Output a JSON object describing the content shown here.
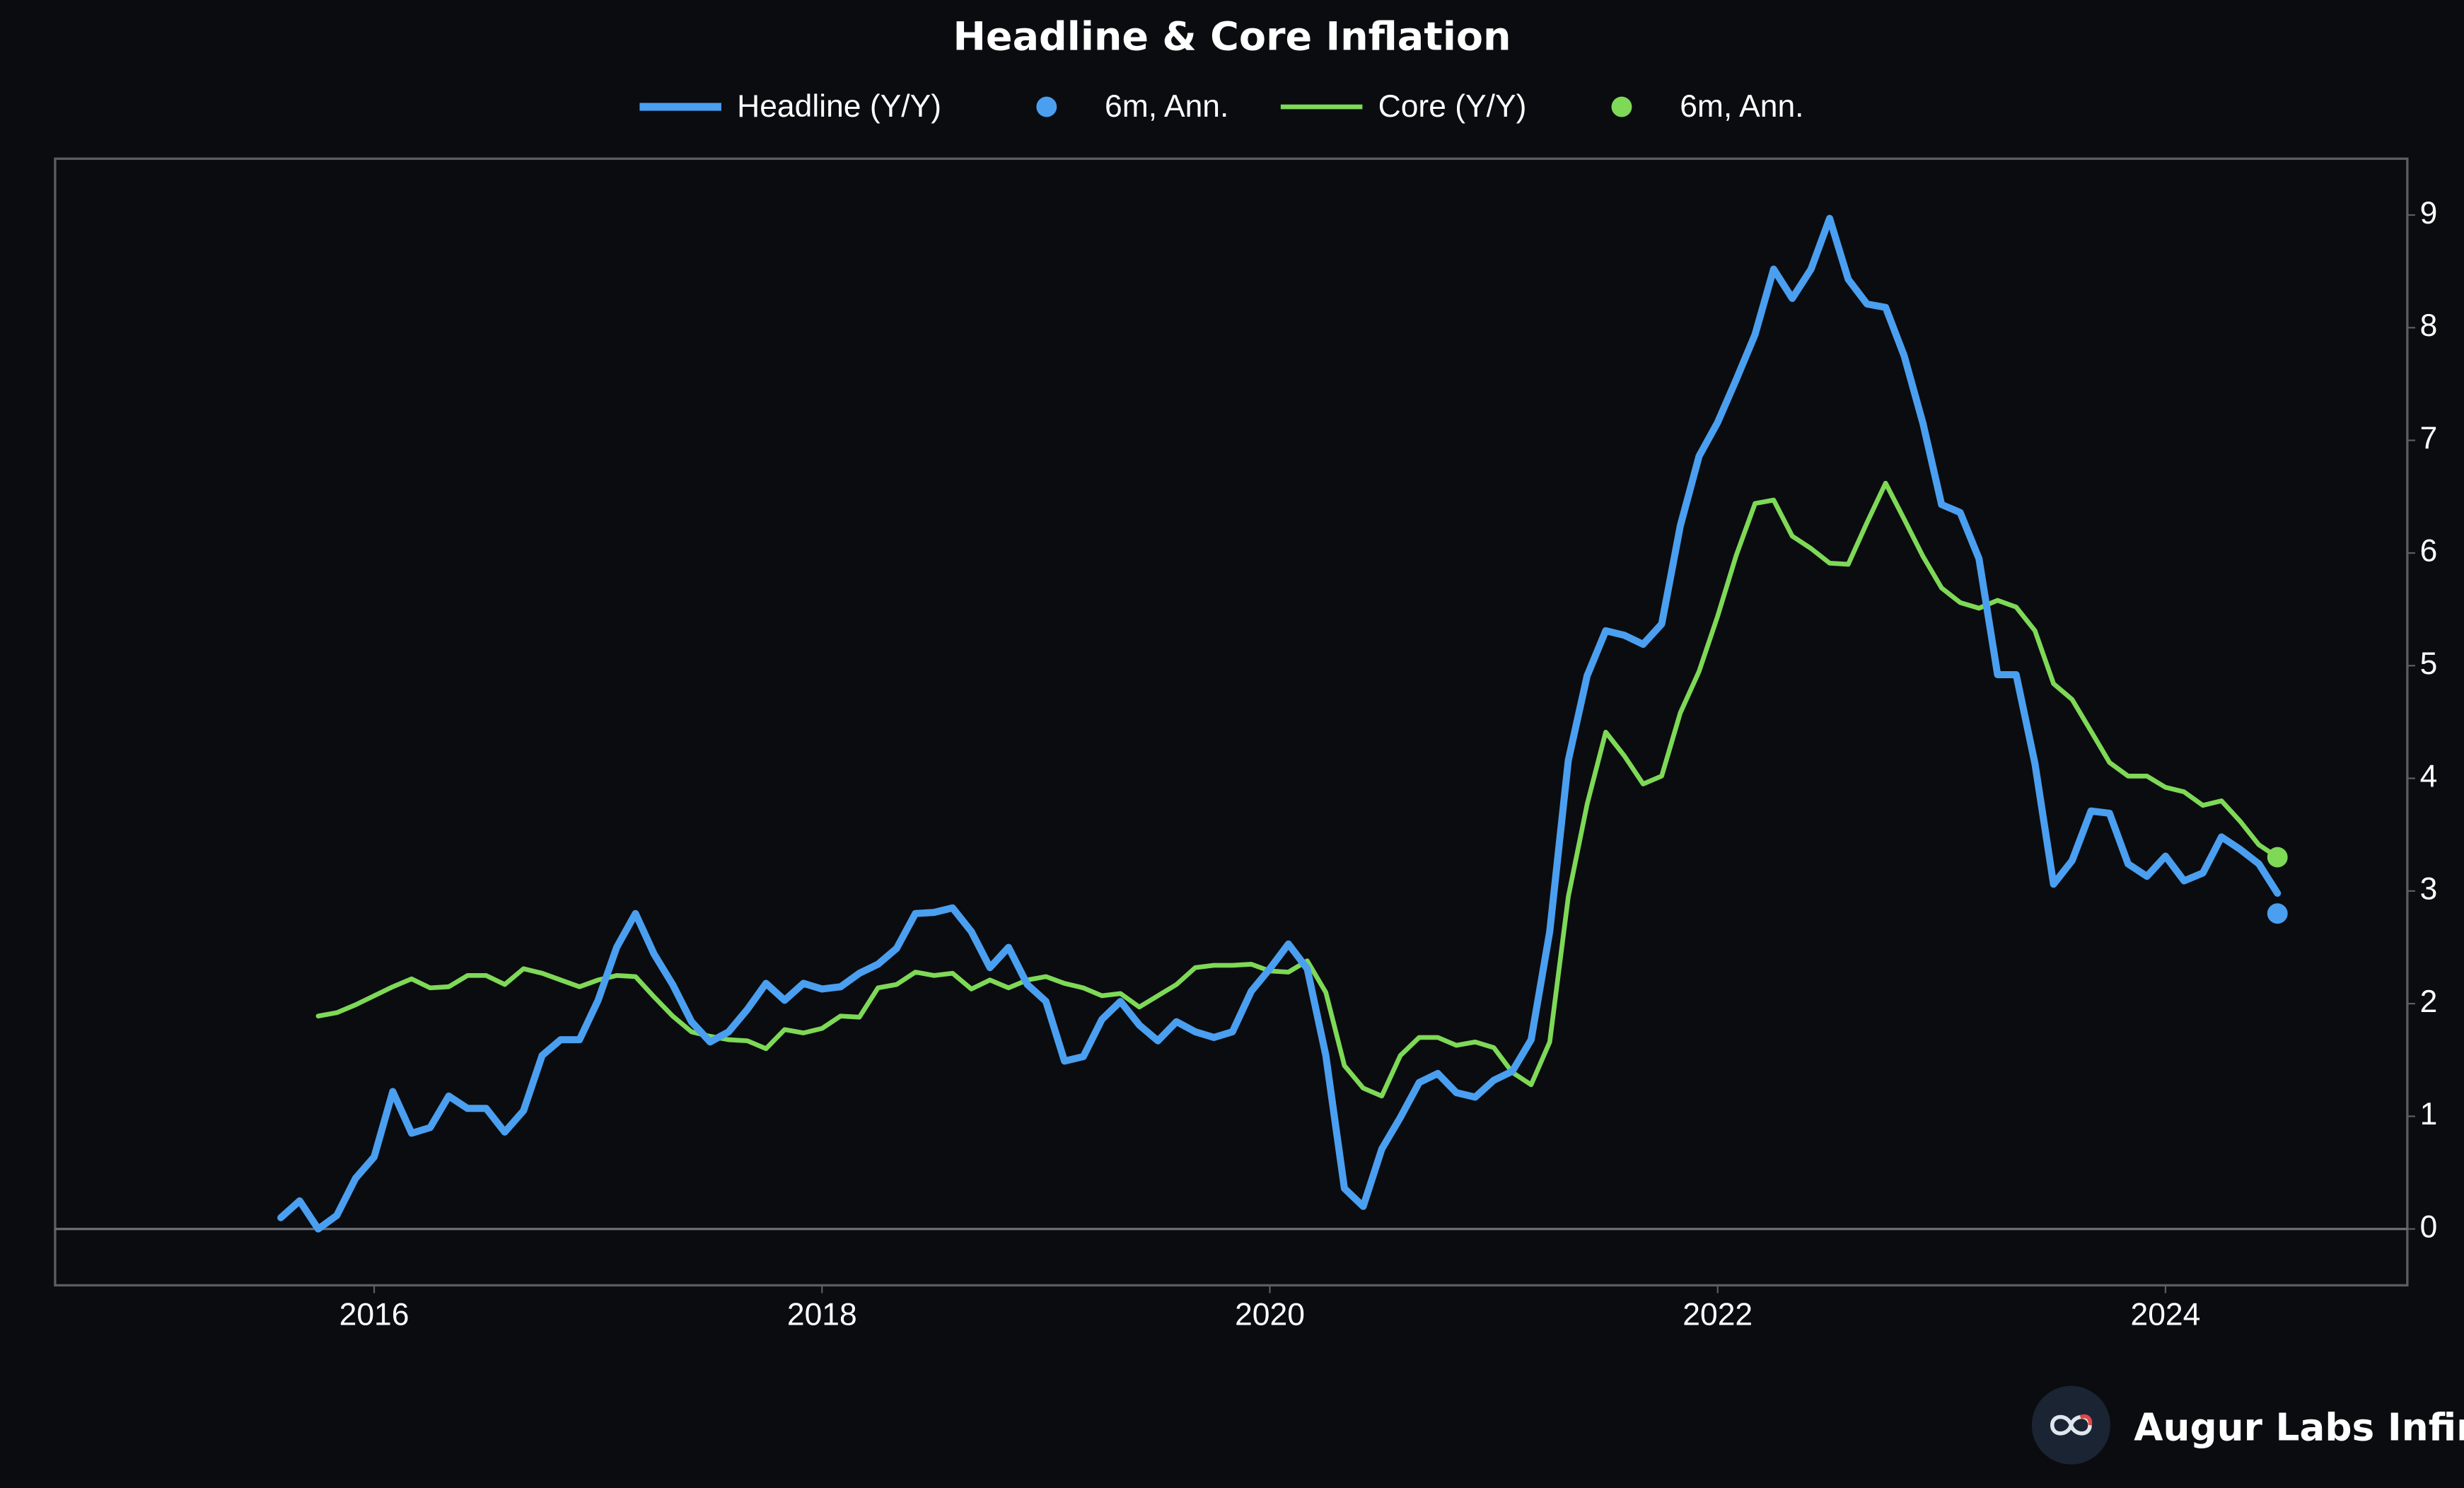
{
  "chart_data": {
    "type": "line",
    "title": "Headline & Core Inflation",
    "x": [
      2015.583,
      2015.667,
      2015.75,
      2015.833,
      2015.917,
      2016.0,
      2016.083,
      2016.167,
      2016.25,
      2016.333,
      2016.417,
      2016.5,
      2016.583,
      2016.667,
      2016.75,
      2016.833,
      2016.917,
      2017.0,
      2017.083,
      2017.167,
      2017.25,
      2017.333,
      2017.417,
      2017.5,
      2017.583,
      2017.667,
      2017.75,
      2017.833,
      2017.917,
      2018.0,
      2018.083,
      2018.167,
      2018.25,
      2018.333,
      2018.417,
      2018.5,
      2018.583,
      2018.667,
      2018.75,
      2018.833,
      2018.917,
      2019.0,
      2019.083,
      2019.167,
      2019.25,
      2019.333,
      2019.417,
      2019.5,
      2019.583,
      2019.667,
      2019.75,
      2019.833,
      2019.917,
      2020.0,
      2020.083,
      2020.167,
      2020.25,
      2020.333,
      2020.417,
      2020.5,
      2020.583,
      2020.667,
      2020.75,
      2020.833,
      2020.917,
      2021.0,
      2021.083,
      2021.167,
      2021.25,
      2021.333,
      2021.417,
      2021.5,
      2021.583,
      2021.667,
      2021.75,
      2021.833,
      2021.917,
      2022.0,
      2022.083,
      2022.167,
      2022.25,
      2022.333,
      2022.417,
      2022.5,
      2022.583,
      2022.667,
      2022.75,
      2022.833,
      2022.917,
      2023.0,
      2023.083,
      2023.167,
      2023.25,
      2023.333,
      2023.417,
      2023.5,
      2023.583,
      2023.667,
      2023.75,
      2023.833,
      2023.917,
      2024.0,
      2024.083,
      2024.167,
      2024.25,
      2024.333,
      2024.417,
      2024.5
    ],
    "series": [
      {
        "name": "Headline (Y/Y)",
        "mode": "lines",
        "color": "#4a9ff0",
        "values": [
          0.1,
          0.25,
          0.0,
          0.12,
          0.45,
          0.64,
          1.22,
          0.85,
          0.9,
          1.18,
          1.07,
          1.07,
          0.86,
          1.05,
          1.54,
          1.68,
          1.68,
          2.03,
          2.5,
          2.8,
          2.44,
          2.17,
          1.84,
          1.66,
          1.75,
          1.95,
          2.18,
          2.03,
          2.18,
          2.13,
          2.15,
          2.27,
          2.35,
          2.49,
          2.8,
          2.81,
          2.85,
          2.64,
          2.32,
          2.5,
          2.17,
          2.02,
          1.49,
          1.53,
          1.86,
          2.02,
          1.81,
          1.67,
          1.84,
          1.75,
          1.7,
          1.75,
          2.11,
          2.31,
          2.53,
          2.31,
          1.54,
          0.36,
          0.2,
          0.71,
          0.99,
          1.3,
          1.38,
          1.21,
          1.17,
          1.32,
          1.4,
          1.68,
          2.64,
          4.16,
          4.91,
          5.31,
          5.27,
          5.19,
          5.37,
          6.24,
          6.86,
          7.16,
          7.54,
          7.94,
          8.52,
          8.26,
          8.52,
          8.97,
          8.43,
          8.21,
          8.18,
          7.75,
          7.15,
          6.43,
          6.36,
          5.95,
          4.92,
          4.92,
          4.13,
          3.06,
          3.27,
          3.71,
          3.69,
          3.24,
          3.13,
          3.31,
          3.09,
          3.16,
          3.48,
          3.37,
          3.24,
          2.98
        ]
      },
      {
        "name": "6m, Ann.",
        "mode": "markers",
        "color": "#4a9ff0",
        "x": [
          2024.5
        ],
        "values": [
          2.8
        ]
      },
      {
        "name": "Core (Y/Y)",
        "mode": "lines",
        "color": "#7ed957",
        "values": [
          null,
          null,
          1.89,
          1.92,
          1.99,
          2.07,
          2.15,
          2.22,
          2.14,
          2.15,
          2.25,
          2.25,
          2.17,
          2.31,
          2.27,
          2.21,
          2.15,
          2.21,
          2.25,
          2.24,
          2.06,
          1.89,
          1.75,
          1.71,
          1.68,
          1.67,
          1.6,
          1.77,
          1.74,
          1.78,
          1.89,
          1.88,
          2.14,
          2.17,
          2.28,
          2.25,
          2.27,
          2.13,
          2.21,
          2.14,
          2.21,
          2.24,
          2.18,
          2.14,
          2.07,
          2.09,
          1.97,
          2.07,
          2.17,
          2.32,
          2.34,
          2.34,
          2.35,
          2.29,
          2.28,
          2.38,
          2.1,
          1.45,
          1.25,
          1.18,
          1.54,
          1.7,
          1.7,
          1.63,
          1.66,
          1.61,
          1.39,
          1.28,
          1.66,
          2.95,
          3.77,
          4.41,
          4.2,
          3.95,
          4.02,
          4.58,
          4.95,
          5.44,
          5.98,
          6.44,
          6.47,
          6.15,
          6.04,
          5.91,
          5.9,
          6.27,
          6.62,
          6.3,
          5.97,
          5.69,
          5.56,
          5.51,
          5.58,
          5.52,
          5.31,
          4.84,
          4.7,
          4.42,
          4.14,
          4.02,
          4.02,
          3.92,
          3.88,
          3.76,
          3.8,
          3.62,
          3.41,
          3.3
        ]
      },
      {
        "name": "6m, Ann.",
        "mode": "markers",
        "color": "#7ed957",
        "x": [
          2024.5
        ],
        "values": [
          3.3
        ]
      }
    ],
    "xlim": [
      2014.575,
      2025.08
    ],
    "xticks": [
      2016,
      2018,
      2020,
      2022,
      2024
    ],
    "ylim": [
      -0.5,
      9.5
    ],
    "yticks": [
      0,
      1,
      2,
      3,
      4,
      5,
      6,
      7,
      8,
      9
    ],
    "y_axis_side": "right",
    "zero_line": true,
    "grid": false,
    "legend": "top",
    "logo_text": "Augur Labs Infinity"
  }
}
